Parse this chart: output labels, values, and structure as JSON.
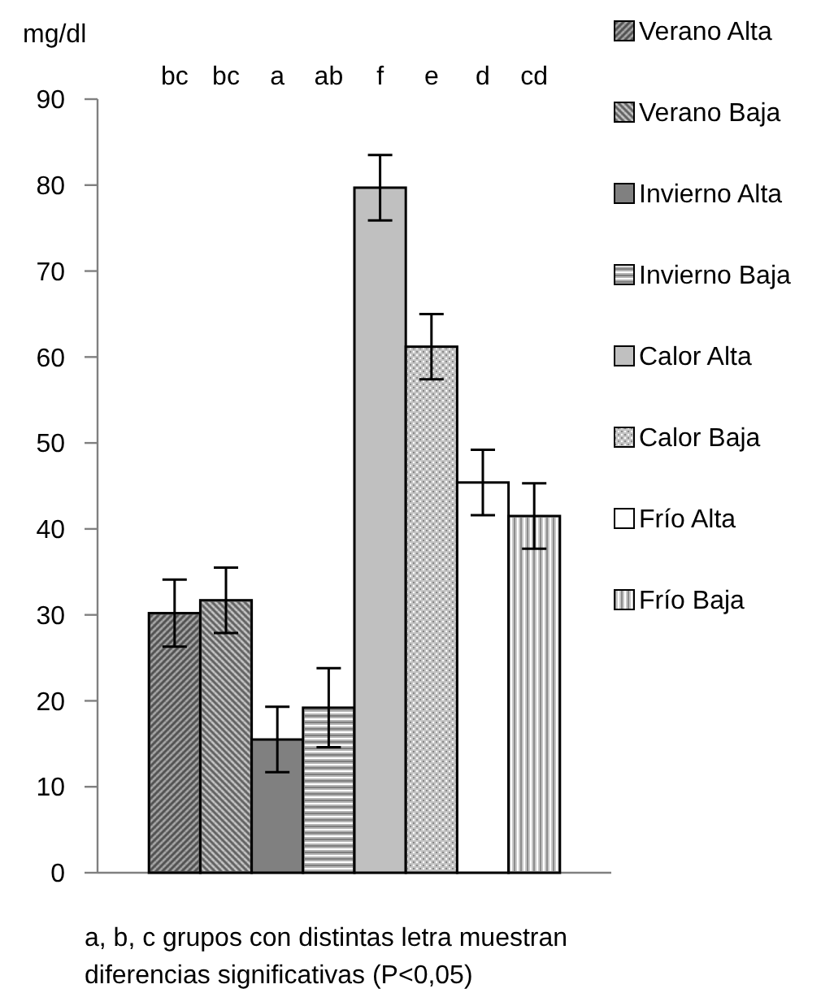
{
  "chart_data": {
    "type": "bar",
    "ylabel": "mg/dl",
    "categories": [
      null
    ],
    "ylim": [
      0,
      90
    ],
    "yticks": [
      0,
      10,
      20,
      30,
      40,
      50,
      60,
      70,
      80,
      90
    ],
    "legend": "right",
    "series": [
      {
        "name": "Verano Alta",
        "color": "#747474",
        "values": [
          30.2
        ],
        "errors": [
          3.9
        ]
      },
      {
        "name": "Verano Baja",
        "color": "#8a8a8a",
        "values": [
          31.7
        ],
        "errors": [
          3.8
        ]
      },
      {
        "name": "Invierno Alta",
        "color": "#808080",
        "values": [
          15.5
        ],
        "errors": [
          3.8
        ]
      },
      {
        "name": "Invierno Baja",
        "color": "#b4b4b4",
        "values": [
          19.2
        ],
        "errors": [
          4.6
        ]
      },
      {
        "name": "Calor Alta",
        "color": "#c0c0c0",
        "values": [
          79.7
        ],
        "errors": [
          3.8
        ]
      },
      {
        "name": "Calor Baja",
        "color": "#c4c4c4",
        "values": [
          61.2
        ],
        "errors": [
          3.8
        ]
      },
      {
        "name": "Frío Alta",
        "color": "#ffffff",
        "values": [
          45.4
        ],
        "errors": [
          3.8
        ]
      },
      {
        "name": "Frío Baja",
        "color": "#c8c8c8",
        "values": [
          41.5
        ],
        "errors": [
          3.8
        ]
      }
    ],
    "annotations": [
      {
        "text": "bc"
      },
      {
        "text": "bc"
      },
      {
        "text": "a"
      },
      {
        "text": "ab"
      },
      {
        "text": "f"
      },
      {
        "text": "e"
      },
      {
        "text": "d"
      },
      {
        "text": "cd"
      },
      "a, b, c grupos con distintas letra muestran diferencias significativas (P<0,05)"
    ]
  }
}
